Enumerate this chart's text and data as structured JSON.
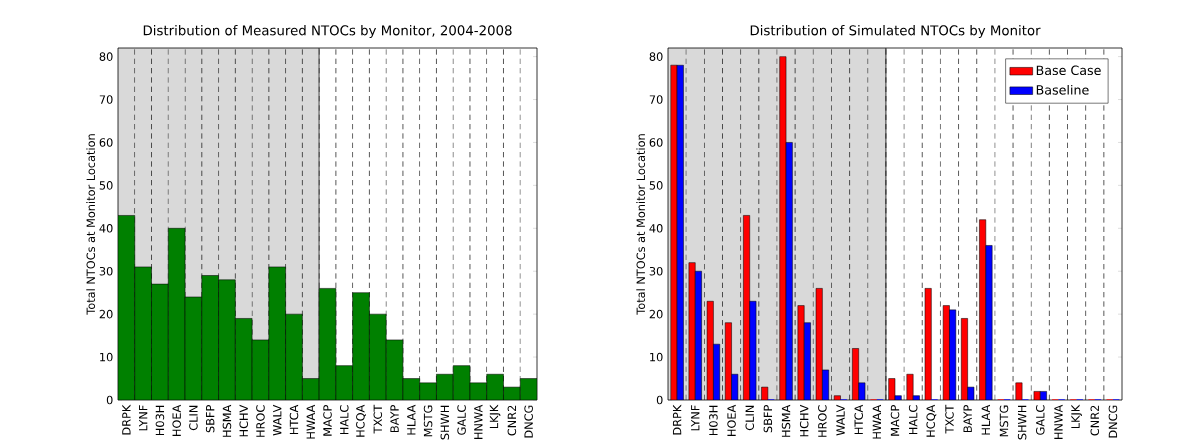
{
  "chart_data": [
    {
      "type": "bar",
      "title": "Distribution of Measured NTOCs by Monitor, 2004-2008",
      "ylabel": "Total NTOCs at Monitor Location",
      "categories": [
        "DRPK",
        "LYNF",
        "H03H",
        "HOEA",
        "CLIN",
        "SBFP",
        "HSMA",
        "HCHV",
        "HROC",
        "WALV",
        "HTCA",
        "HWAA",
        "MACP",
        "HALC",
        "HCQA",
        "TXCT",
        "BAYP",
        "HLAA",
        "MSTG",
        "SHWH",
        "GALC",
        "HNWA",
        "LKJK",
        "CNR2",
        "DNCG"
      ],
      "values": [
        43,
        31,
        27,
        40,
        24,
        29,
        28,
        19,
        14,
        31,
        20,
        5,
        26,
        8,
        25,
        20,
        14,
        5,
        4,
        6,
        8,
        4,
        6,
        3,
        5
      ],
      "color": "#008000",
      "ylim": [
        0,
        82
      ],
      "yticks": [
        0,
        10,
        20,
        30,
        40,
        50,
        60,
        70,
        80
      ],
      "grid": "x",
      "bands": [
        {
          "axis": "x",
          "from": "DRPK",
          "to": "HWAA",
          "color": "#d9d9d9"
        }
      ]
    },
    {
      "type": "bar",
      "title": "Distribution of Simulated NTOCs by Monitor",
      "ylabel": "Total NTOCs at Monitor Location",
      "categories": [
        "DRPK",
        "LYNF",
        "H03H",
        "HOEA",
        "CLIN",
        "SBFP",
        "HSMA",
        "HCHV",
        "HROC",
        "WALV",
        "HTCA",
        "HWAA",
        "MACP",
        "HALC",
        "HCQA",
        "TXCT",
        "BAYP",
        "HLAA",
        "MSTG",
        "SHWH",
        "GALC",
        "HNWA",
        "LKJK",
        "CNR2",
        "DNCG"
      ],
      "series": [
        {
          "name": "Base Case",
          "color": "#ff0000",
          "values": [
            78,
            32,
            23,
            18,
            43,
            3,
            80,
            22,
            26,
            1,
            12,
            0,
            5,
            6,
            26,
            22,
            19,
            42,
            0,
            4,
            2,
            0,
            0,
            0,
            0
          ]
        },
        {
          "name": "Baseline",
          "color": "#0000ff",
          "values": [
            78,
            30,
            13,
            6,
            23,
            0,
            60,
            18,
            7,
            0,
            4,
            0,
            1,
            1,
            0,
            21,
            3,
            36,
            0,
            0,
            2,
            0,
            0,
            0,
            0
          ]
        }
      ],
      "ylim": [
        0,
        82
      ],
      "yticks": [
        0,
        10,
        20,
        30,
        40,
        50,
        60,
        70,
        80
      ],
      "grid": "x",
      "legend": "top right",
      "bands": [
        {
          "axis": "x",
          "from": "DRPK",
          "to": "HWAA",
          "color": "#d9d9d9"
        }
      ]
    }
  ]
}
